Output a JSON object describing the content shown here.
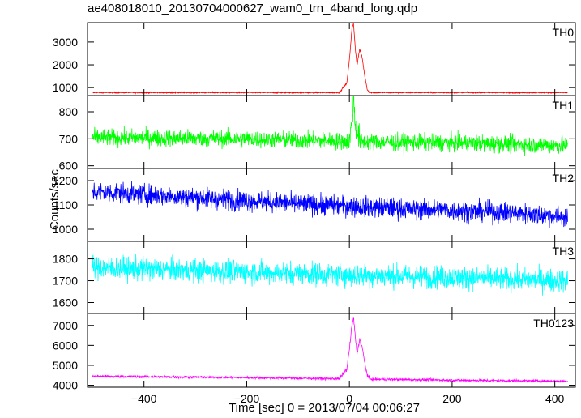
{
  "chart_data": {
    "type": "line",
    "title": "ae408018010_20130704000627_wam0_trn_4band_long.qdp",
    "xlabel": "Time [sec] 0 = 2013/07/04 00:06:27",
    "ylabel": "Counts/sec",
    "xlim": [
      -510,
      440
    ],
    "x_ticks": [
      -400,
      -200,
      0,
      200,
      400
    ],
    "panels": [
      {
        "name": "TH0",
        "color": "#ff0000",
        "ylim": [
          650,
          3850
        ],
        "y_ticks": [
          1000,
          2000,
          3000
        ],
        "baseline": [
          [
            -500,
            780
          ],
          [
            425,
            780
          ]
        ],
        "noise": 25,
        "burst": [
          [
            -20,
            780
          ],
          [
            -5,
            1200
          ],
          [
            0,
            2200
          ],
          [
            5,
            3600
          ],
          [
            8,
            3800
          ],
          [
            12,
            2600
          ],
          [
            15,
            2000
          ],
          [
            20,
            2700
          ],
          [
            25,
            2300
          ],
          [
            30,
            1500
          ],
          [
            35,
            900
          ],
          [
            40,
            780
          ]
        ]
      },
      {
        "name": "TH1",
        "color": "#00ff00",
        "ylim": [
          590,
          860
        ],
        "y_ticks": [
          600,
          700,
          800
        ],
        "baseline": [
          [
            -500,
            705
          ],
          [
            -200,
            700
          ],
          [
            0,
            690
          ],
          [
            200,
            685
          ],
          [
            425,
            675
          ]
        ],
        "noise": 30,
        "burst": [
          [
            0,
            690
          ],
          [
            5,
            760
          ],
          [
            8,
            855
          ],
          [
            12,
            740
          ],
          [
            20,
            700
          ]
        ]
      },
      {
        "name": "TH2",
        "color": "#0000ff",
        "ylim": [
          950,
          1250
        ],
        "y_ticks": [
          1000,
          1100,
          1200
        ],
        "baseline": [
          [
            -500,
            1155
          ],
          [
            -300,
            1130
          ],
          [
            -100,
            1105
          ],
          [
            100,
            1085
          ],
          [
            300,
            1070
          ],
          [
            425,
            1050
          ]
        ],
        "noise": 40,
        "burst": []
      },
      {
        "name": "TH3",
        "color": "#00ffff",
        "ylim": [
          1550,
          1880
        ],
        "y_ticks": [
          1600,
          1700,
          1800
        ],
        "baseline": [
          [
            -500,
            1760
          ],
          [
            -200,
            1740
          ],
          [
            0,
            1725
          ],
          [
            200,
            1715
          ],
          [
            425,
            1700
          ]
        ],
        "noise": 50,
        "burst": []
      },
      {
        "name": "TH0123",
        "color": "#ff00ff",
        "ylim": [
          3900,
          7600
        ],
        "y_ticks": [
          4000,
          5000,
          6000,
          7000
        ],
        "baseline": [
          [
            -500,
            4450
          ],
          [
            -200,
            4380
          ],
          [
            0,
            4320
          ],
          [
            200,
            4250
          ],
          [
            425,
            4200
          ]
        ],
        "noise": 60,
        "burst": [
          [
            -20,
            4320
          ],
          [
            -5,
            4800
          ],
          [
            0,
            5800
          ],
          [
            5,
            7000
          ],
          [
            8,
            7400
          ],
          [
            12,
            6300
          ],
          [
            15,
            5600
          ],
          [
            20,
            6300
          ],
          [
            25,
            5900
          ],
          [
            30,
            5100
          ],
          [
            35,
            4500
          ],
          [
            40,
            4300
          ]
        ]
      }
    ]
  }
}
